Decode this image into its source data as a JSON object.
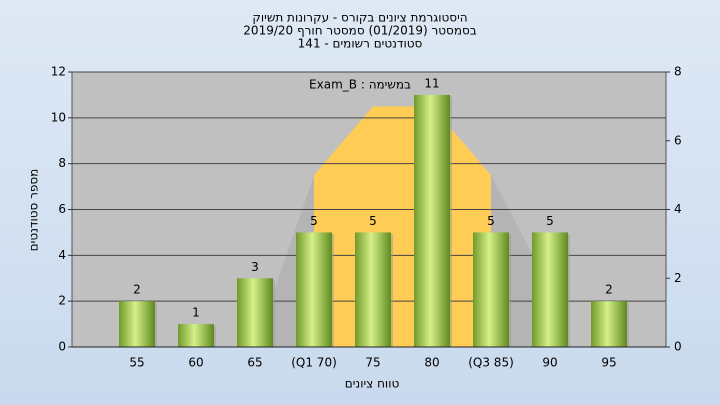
{
  "chart_data": {
    "type": "bar",
    "title_lines": [
      "היסטוגרמת ציונים בקורס - עקרונות תשיוק",
      "בסמסטר  (01/2019)  סמסטר חורף 2019/20",
      "סטודנטים רשומים - 141"
    ],
    "annotation": "במשימה : Exam_B",
    "y_label": "מספר סטודנטים",
    "x_label": "טווח ציונים",
    "categories": [
      "55",
      "60",
      "65",
      "(Q1 70)",
      "75",
      "80",
      "(Q3 85)",
      "90",
      "95"
    ],
    "values": [
      2,
      1,
      3,
      5,
      5,
      11,
      5,
      5,
      2
    ],
    "color": "#8fbf3f",
    "areas": [
      {
        "color": "#b4b4b4",
        "axis": "y2",
        "values": [
          null,
          null,
          0,
          5,
          7,
          7,
          5,
          1.7,
          null
        ]
      },
      {
        "color": "#ffcc55",
        "axis": "y2",
        "values": [
          null,
          null,
          null,
          5,
          7,
          7,
          5,
          null,
          null
        ]
      }
    ],
    "ylim": [
      0,
      12
    ],
    "yticks": [
      0,
      2,
      4,
      6,
      8,
      10,
      12
    ],
    "y2lim": [
      0,
      8
    ],
    "y2ticks": [
      0,
      2,
      4,
      6,
      8
    ],
    "grid": true
  }
}
